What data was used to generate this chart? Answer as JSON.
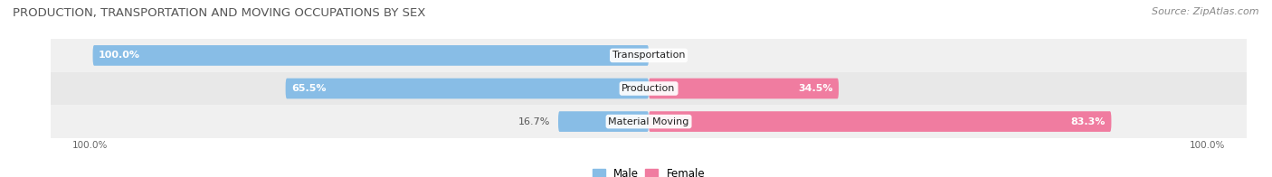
{
  "title": "PRODUCTION, TRANSPORTATION AND MOVING OCCUPATIONS BY SEX",
  "source": "Source: ZipAtlas.com",
  "categories": [
    "Transportation",
    "Production",
    "Material Moving"
  ],
  "male_values": [
    100.0,
    65.5,
    16.7
  ],
  "female_values": [
    0.0,
    34.5,
    83.3
  ],
  "male_color": "#88bde6",
  "female_color": "#f07ca0",
  "row_bg_even": "#f0f0f0",
  "row_bg_odd": "#e8e8e8",
  "title_fontsize": 9.5,
  "source_fontsize": 8,
  "label_fontsize": 8,
  "category_fontsize": 8,
  "figsize": [
    14.06,
    1.96
  ],
  "dpi": 100,
  "xlim_left": -107,
  "xlim_right": 107
}
